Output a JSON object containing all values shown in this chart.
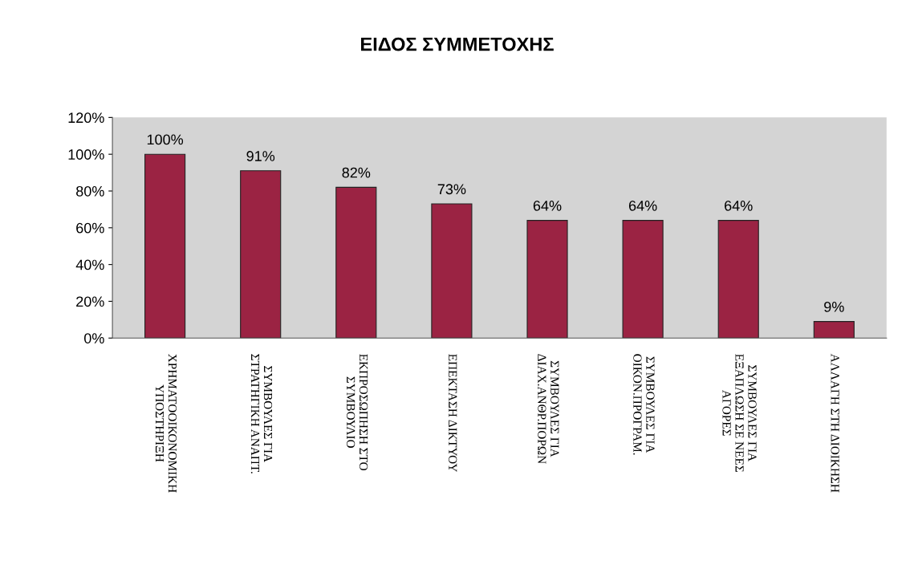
{
  "chart_data": {
    "type": "bar",
    "title": "ΕΙΔΟΣ ΣΥΜΜΕΤΟΧΗΣ",
    "categories": [
      "ΧΡΗΜΑΤΟΟΙΚΟΝΟΜΙΚΗ\nΥΠΟΣΤΗΡΙΞΗ",
      "ΣΥΜΒΟΥΛΕΣ ΓΙΑ\nΣΤΡΑΤΗΓΙΚΗ ΑΝΑΠΤ.",
      "ΕΚΠΡΟΣΩΠΗΣΗ ΣΤΟ\nΣΥΜΒΟΥΛΙΟ",
      "ΕΠΕΚΤΑΣΗ ΔΙΚΤΥΟΥ",
      "ΣΥΜΒΟΥΛΕΣ ΓΙΑ\nΔΙΑΧ.ΑΝΘΡ.ΠΟΡΩΝ",
      "ΣΥΜΒΟΥΛΕΣ ΓΙΑ\nΟΙΚΟΝ.ΠΡΟΓΡΑΜ.",
      "ΣΥΜΒΟΥΛΕΣ ΓΙΑ\nΕΞΑΠΛΩΣΗ ΣΕ ΝΕΕΣ\nΑΓΟΡΕΣ",
      "ΑΛΛΑΓΗ ΣΤΗ ΔΙΟΙΚΗΣΗ"
    ],
    "values": [
      100,
      91,
      82,
      73,
      64,
      64,
      64,
      9
    ],
    "value_labels": [
      "100%",
      "91%",
      "82%",
      "73%",
      "64%",
      "64%",
      "64%",
      "9%"
    ],
    "color": "#9b2343",
    "ylim": [
      0,
      120
    ],
    "yticks": [
      {
        "value": 0,
        "label": "0%"
      },
      {
        "value": 20,
        "label": "20%"
      },
      {
        "value": 40,
        "label": "40%"
      },
      {
        "value": 60,
        "label": "60%"
      },
      {
        "value": 80,
        "label": "80%"
      },
      {
        "value": 100,
        "label": "100%"
      },
      {
        "value": 120,
        "label": "120%"
      }
    ],
    "grid": false
  }
}
